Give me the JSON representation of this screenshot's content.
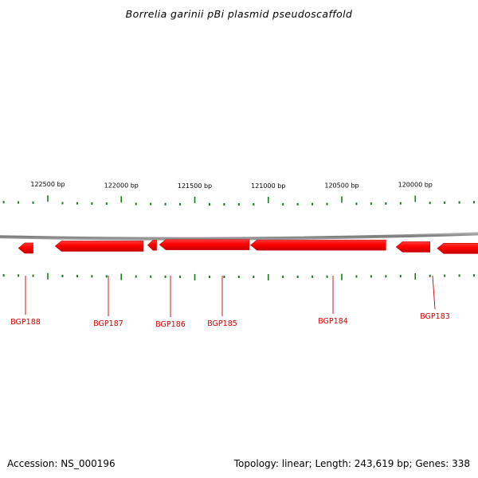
{
  "title": "Borrelia garinii pBi plasmid pseudoscaffold",
  "ruler": {
    "labels": [
      {
        "text": "122500 bp",
        "bp": 122500
      },
      {
        "text": "122000 bp",
        "bp": 122000
      },
      {
        "text": "121500 bp",
        "bp": 121500
      },
      {
        "text": "121000 bp",
        "bp": 121000
      },
      {
        "text": "120500 bp",
        "bp": 120500
      },
      {
        "text": "120000 bp",
        "bp": 120000
      }
    ],
    "tick_color": "#1a7a1a"
  },
  "genes": [
    {
      "label": "BGP188",
      "strand": "-",
      "start_bp": 122600,
      "end_bp": 122700
    },
    {
      "label": "BGP187",
      "strand": "-",
      "start_bp": 121850,
      "end_bp": 122450
    },
    {
      "label": "BGP186",
      "strand": "-",
      "start_bp": 121820,
      "end_bp": 121760
    },
    {
      "label": "BGP185",
      "strand": "-",
      "start_bp": 121130,
      "end_bp": 121740
    },
    {
      "label": "BGP184",
      "strand": "-",
      "start_bp": 120200,
      "end_bp": 121120
    },
    {
      "label": "BGP183",
      "strand": "-",
      "start_bp": 119900,
      "end_bp": 120130
    },
    {
      "label": "",
      "strand": "-",
      "start_bp": 119550,
      "end_bp": 119850
    }
  ],
  "colors": {
    "gene": "#ff0000",
    "gene_label": "#cc0000",
    "backbone": "#8a8a8a"
  },
  "footer": {
    "accession": "Accession: NS_000196",
    "summary": "Topology: linear; Length: 243,619 bp; Genes: 338"
  }
}
